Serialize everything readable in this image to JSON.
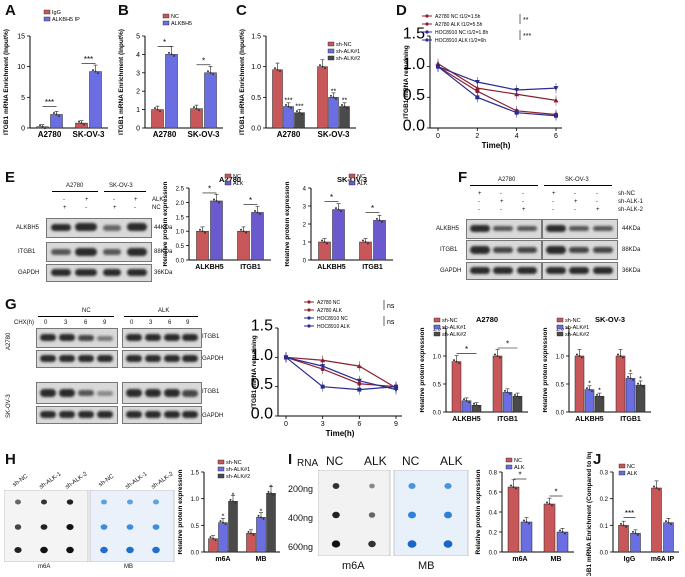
{
  "panels": {
    "A": "A",
    "B": "B",
    "C": "C",
    "D": "D",
    "E": "E",
    "F": "F",
    "G": "G",
    "H": "H",
    "I": "I",
    "J": "J"
  },
  "colors": {
    "red": "#c8575a",
    "blue": "#6b6ee0",
    "dark": "#4a4a4a",
    "purple": "#6a5acd",
    "navy": "#2b2b8f",
    "maroon": "#8b2030"
  },
  "blots": {
    "E": {
      "cells": [
        "A2780",
        "SK-OV-3"
      ],
      "row_alk": "ALK",
      "row_nc": "NC",
      "alk_signs": [
        "-",
        "+",
        "-",
        "+"
      ],
      "nc_signs": [
        "+",
        "-",
        "+",
        "-"
      ],
      "proteins": [
        "ALKBH5",
        "ITGB1",
        "GAPDH"
      ],
      "sizes": [
        "44KDa",
        "88KDa",
        "36KDa"
      ]
    },
    "F": {
      "cells": [
        "A2780",
        "SK-OV-3"
      ],
      "rows": [
        "sh-NC",
        "sh-ALK-1",
        "sh-ALK-2"
      ],
      "row1_signs": [
        "+",
        "-",
        "-",
        "+",
        "-",
        "-"
      ],
      "row2_signs": [
        "-",
        "+",
        "-",
        "-",
        "+",
        "-"
      ],
      "row3_signs": [
        "-",
        "-",
        "+",
        "-",
        "-",
        "+"
      ],
      "proteins": [
        "ALKBH5",
        "ITGB1",
        "GAPDH"
      ],
      "sizes": [
        "44KDa",
        "88KDa",
        "36KDa"
      ]
    },
    "G": {
      "groups": [
        "NC",
        "ALK"
      ],
      "chx_label": "CHX(h)",
      "times": [
        "0",
        "3",
        "6",
        "9",
        "0",
        "3",
        "6",
        "9"
      ],
      "cells": [
        "A2780",
        "SK-OV-3"
      ],
      "proteins": [
        "ITGB1",
        "GAPDH",
        "ITGB1",
        "GAPDH"
      ]
    },
    "H": {
      "lanes": [
        "sh-NC",
        "sh-ALK-1",
        "sh-ALK-2",
        "sh-NC",
        "sh-ALK-1",
        "sh-ALK-2"
      ],
      "stains": [
        "m6A",
        "MB"
      ]
    },
    "I": {
      "rna_label": "RNA",
      "groups": [
        "NC",
        "ALK",
        "NC",
        "ALK"
      ],
      "amounts": [
        "200ng",
        "400ng",
        "600ng"
      ],
      "stains": [
        "m6A",
        "MB"
      ]
    }
  },
  "chart_data": [
    {
      "id": "A",
      "type": "bar",
      "ylabel": "ITGB1 mRNA Enrichment (Input%)",
      "categories": [
        "A2780",
        "SK-OV-3"
      ],
      "legend": [
        "IgG",
        "ALKBH5 IP"
      ],
      "series": [
        {
          "name": "IgG",
          "values": [
            0.2,
            0.8
          ]
        },
        {
          "name": "ALKBH5 IP",
          "values": [
            2.2,
            9.2
          ]
        }
      ],
      "ylim": [
        0,
        15
      ],
      "yticks": [
        "0",
        "5",
        "10",
        "15"
      ],
      "sig": [
        "***",
        "***"
      ]
    },
    {
      "id": "B",
      "type": "bar",
      "ylabel": "ITGB1 mRNA Enrichment (Input%)",
      "categories": [
        "A2780",
        "SK-OV-3"
      ],
      "legend": [
        "NC",
        "ALKBH5"
      ],
      "series": [
        {
          "name": "NC",
          "values": [
            1.0,
            1.05
          ]
        },
        {
          "name": "ALKBH5",
          "values": [
            4.0,
            3.0
          ]
        }
      ],
      "ylim": [
        0,
        5
      ],
      "yticks": [
        "0",
        "1",
        "2",
        "3",
        "4",
        "5"
      ],
      "sig": [
        "*",
        "*"
      ]
    },
    {
      "id": "C",
      "type": "bar",
      "ylabel": "ITGB1 mRNA Enrichment (Input%)",
      "categories": [
        "A2780",
        "SK-OV-3"
      ],
      "legend": [
        "sh-NC",
        "sh-ALK#1",
        "sh-ALK#2"
      ],
      "series": [
        {
          "name": "sh-NC",
          "values": [
            0.95,
            1.0
          ]
        },
        {
          "name": "sh-ALK#1",
          "values": [
            0.35,
            0.5
          ]
        },
        {
          "name": "sh-ALK#2",
          "values": [
            0.25,
            0.35
          ]
        }
      ],
      "ylim": [
        0,
        1.5
      ],
      "yticks": [
        "0.0",
        "0.5",
        "1.0",
        "1.5"
      ],
      "sig": [
        "***",
        "***",
        "**",
        "**"
      ]
    },
    {
      "id": "D",
      "type": "line",
      "ylabel": "ITGB1 mRNA remaining",
      "xlabel": "Time(h)",
      "x": [
        0,
        2,
        4,
        6
      ],
      "xticks": [
        "0",
        "2",
        "4",
        "6"
      ],
      "ylim": [
        0,
        1.5
      ],
      "yticks": [
        "0.0",
        "0.5",
        "1.0",
        "1.5"
      ],
      "legend": [
        "A2780 NC t1/2=1.5h",
        "A2780 ALK t1/2=5.5h",
        "HOC8910 NC t1/2=1.8h",
        "HOC8910 ALK t1/2=6h"
      ],
      "series": [
        {
          "name": "A2780 NC t1/2=1.5h",
          "values": [
            1.0,
            0.6,
            0.28,
            0.22
          ]
        },
        {
          "name": "A2780 ALK t1/2=5.5h",
          "values": [
            1.05,
            0.65,
            0.55,
            0.45
          ]
        },
        {
          "name": "HOC8910 NC t1/2=1.8h",
          "values": [
            1.0,
            0.5,
            0.25,
            0.2
          ]
        },
        {
          "name": "HOC8910 ALK t1/2=6h",
          "values": [
            1.0,
            0.75,
            0.62,
            0.65
          ]
        }
      ],
      "sig": [
        "**",
        "***"
      ]
    },
    {
      "id": "E1",
      "type": "bar",
      "title": "A2780",
      "ylabel": "Relative protein expression",
      "categories": [
        "ALKBH5",
        "ITGB1"
      ],
      "legend": [
        "NC",
        "ALK"
      ],
      "series": [
        {
          "name": "NC",
          "values": [
            1.0,
            1.0
          ]
        },
        {
          "name": "ALK",
          "values": [
            2.05,
            1.65
          ]
        }
      ],
      "ylim": [
        0,
        2.5
      ],
      "yticks": [
        "0.0",
        "0.5",
        "1.0",
        "1.5",
        "2.0",
        "2.5"
      ],
      "sig": [
        "*",
        "*"
      ]
    },
    {
      "id": "E2",
      "type": "bar",
      "title": "SK-OV-3",
      "ylabel": "Relative protein expression",
      "categories": [
        "ALKBH5",
        "ITGB1"
      ],
      "legend": [
        "NC",
        "ALK"
      ],
      "series": [
        {
          "name": "NC",
          "values": [
            1.0,
            1.0
          ]
        },
        {
          "name": "ALK",
          "values": [
            2.8,
            2.2
          ]
        }
      ],
      "ylim": [
        0,
        4
      ],
      "yticks": [
        "0",
        "1",
        "2",
        "3",
        "4"
      ],
      "sig": [
        "*",
        "*"
      ]
    },
    {
      "id": "G1",
      "type": "line",
      "ylabel": "ITGB1 mRNA remaining",
      "xlabel": "Time(h)",
      "x": [
        0,
        3,
        6,
        9
      ],
      "xticks": [
        "0",
        "3",
        "6",
        "9"
      ],
      "ylim": [
        0,
        1.5
      ],
      "yticks": [
        "0.0",
        "0.5",
        "1.0",
        "1.5"
      ],
      "legend": [
        "A2780 NC",
        "A2780 ALK",
        "HOC8910 NC",
        "HOC8910 ALK"
      ],
      "series": [
        {
          "name": "A2780 NC",
          "values": [
            1.0,
            0.8,
            0.55,
            0.5
          ]
        },
        {
          "name": "A2780 ALK",
          "values": [
            1.0,
            0.95,
            0.85,
            0.48
          ]
        },
        {
          "name": "HOC8910 NC",
          "values": [
            1.0,
            0.5,
            0.45,
            0.5
          ]
        },
        {
          "name": "HOC8910 ALK",
          "values": [
            1.0,
            0.85,
            0.6,
            0.45
          ]
        }
      ],
      "sig": [
        "ns",
        "ns"
      ]
    },
    {
      "id": "G2",
      "type": "bar",
      "title": "A2780",
      "ylabel": "Relative protein expression",
      "categories": [
        "ALKBH5",
        "ITGB1"
      ],
      "legend": [
        "sh-NC",
        "sh-ALK#1",
        "sh-ALK#2"
      ],
      "series": [
        {
          "name": "sh-NC",
          "values": [
            0.9,
            1.0
          ]
        },
        {
          "name": "sh-ALK#1",
          "values": [
            0.2,
            0.35
          ]
        },
        {
          "name": "sh-ALK#2",
          "values": [
            0.12,
            0.28
          ]
        }
      ],
      "ylim": [
        0,
        1.5
      ],
      "yticks": [
        "0.0",
        "0.5",
        "1.0",
        "1.5"
      ],
      "sig": [
        "*",
        "*"
      ]
    },
    {
      "id": "G3",
      "type": "bar",
      "title": "SK-OV-3",
      "ylabel": "Relative protein expression",
      "categories": [
        "ALKBH5",
        "ITGB1"
      ],
      "legend": [
        "sh-NC",
        "sh-ALK#1",
        "sh-ALK#2"
      ],
      "series": [
        {
          "name": "sh-NC",
          "values": [
            1.0,
            1.0
          ]
        },
        {
          "name": "sh-ALK#1",
          "values": [
            0.4,
            0.6
          ]
        },
        {
          "name": "sh-ALK#2",
          "values": [
            0.28,
            0.48
          ]
        }
      ],
      "ylim": [
        0,
        1.5
      ],
      "yticks": [
        "0.0",
        "0.5",
        "1.0",
        "1.5"
      ],
      "sig": [
        "*",
        "*",
        "*",
        "*"
      ]
    },
    {
      "id": "H",
      "type": "bar",
      "ylabel": "Relative protein expression",
      "categories": [
        "m6A",
        "MB"
      ],
      "legend": [
        "sh-NC",
        "sh-ALK#1",
        "sh-ALK#2"
      ],
      "series": [
        {
          "name": "sh-NC",
          "values": [
            0.25,
            0.35
          ]
        },
        {
          "name": "sh-ALK#1",
          "values": [
            0.55,
            0.65
          ]
        },
        {
          "name": "sh-ALK#2",
          "values": [
            0.95,
            1.1
          ]
        }
      ],
      "ylim": [
        0,
        1.5
      ],
      "yticks": [
        "0.0",
        "0.5",
        "1.0",
        "1.5"
      ],
      "sig": [
        "*",
        "*",
        "*",
        "*"
      ]
    },
    {
      "id": "I",
      "type": "bar",
      "ylabel": "Relative protein expression",
      "categories": [
        "m6A",
        "MB"
      ],
      "legend": [
        "NC",
        "ALK"
      ],
      "series": [
        {
          "name": "NC",
          "values": [
            0.65,
            0.48
          ]
        },
        {
          "name": "ALK",
          "values": [
            0.3,
            0.2
          ]
        }
      ],
      "ylim": [
        0,
        0.8
      ],
      "yticks": [
        "0.0",
        "0.2",
        "0.4",
        "0.6",
        "0.8"
      ],
      "sig": [
        "*",
        "*"
      ]
    },
    {
      "id": "J",
      "type": "bar",
      "ylabel": "ITGB1 mRNA Enrichment (Compared to Input)",
      "categories": [
        "IgG",
        "m6A IP"
      ],
      "legend": [
        "NC",
        "ALK"
      ],
      "series": [
        {
          "name": "NC",
          "values": [
            0.1,
            0.24
          ]
        },
        {
          "name": "ALK",
          "values": [
            0.07,
            0.11
          ]
        }
      ],
      "ylim": [
        0,
        0.3
      ],
      "yticks": [
        "0.0",
        "0.1",
        "0.2",
        "0.3"
      ],
      "sig": [
        "***"
      ]
    }
  ]
}
